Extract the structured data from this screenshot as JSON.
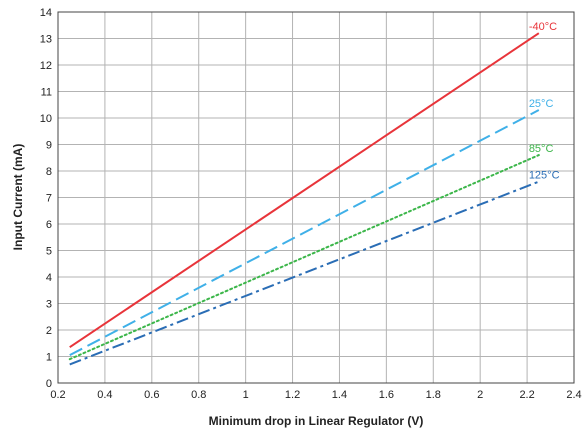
{
  "chart_data": {
    "type": "line",
    "title": "",
    "xlabel": "Minimum drop in Linear Regulator (V)",
    "ylabel": "Input Current (mA)",
    "xlim": [
      0.2,
      2.4
    ],
    "ylim": [
      0,
      14
    ],
    "x_ticks": [
      0.2,
      0.4,
      0.6,
      0.8,
      1.0,
      1.2,
      1.4,
      1.6,
      1.8,
      2.0,
      2.2,
      2.4
    ],
    "x_tick_labels": [
      "0.2",
      "0.4",
      "0.6",
      "0.8",
      "1",
      "1.2",
      "1.4",
      "1.6",
      "1.8",
      "2",
      "2.2",
      "2.4"
    ],
    "y_ticks": [
      0,
      1,
      2,
      3,
      4,
      5,
      6,
      7,
      8,
      9,
      10,
      11,
      12,
      13,
      14
    ],
    "y_tick_labels": [
      "0",
      "1",
      "2",
      "3",
      "4",
      "5",
      "6",
      "7",
      "8",
      "9",
      "10",
      "11",
      "12",
      "13",
      "14"
    ],
    "grid": true,
    "legend": "none",
    "series": [
      {
        "name": "-40°C",
        "color": "#e8343a",
        "style": "solid",
        "x": [
          0.25,
          2.25
        ],
        "y": [
          1.35,
          13.2
        ]
      },
      {
        "name": "25°C",
        "color": "#3fb0e8",
        "style": "dashed",
        "x": [
          0.25,
          2.25
        ],
        "y": [
          1.05,
          10.3
        ]
      },
      {
        "name": "85°C",
        "color": "#3cb64a",
        "style": "dotted",
        "x": [
          0.25,
          2.25
        ],
        "y": [
          0.9,
          8.6
        ]
      },
      {
        "name": "125°C",
        "color": "#2a6db5",
        "style": "dashdot",
        "x": [
          0.25,
          2.25
        ],
        "y": [
          0.7,
          7.6
        ]
      }
    ]
  }
}
